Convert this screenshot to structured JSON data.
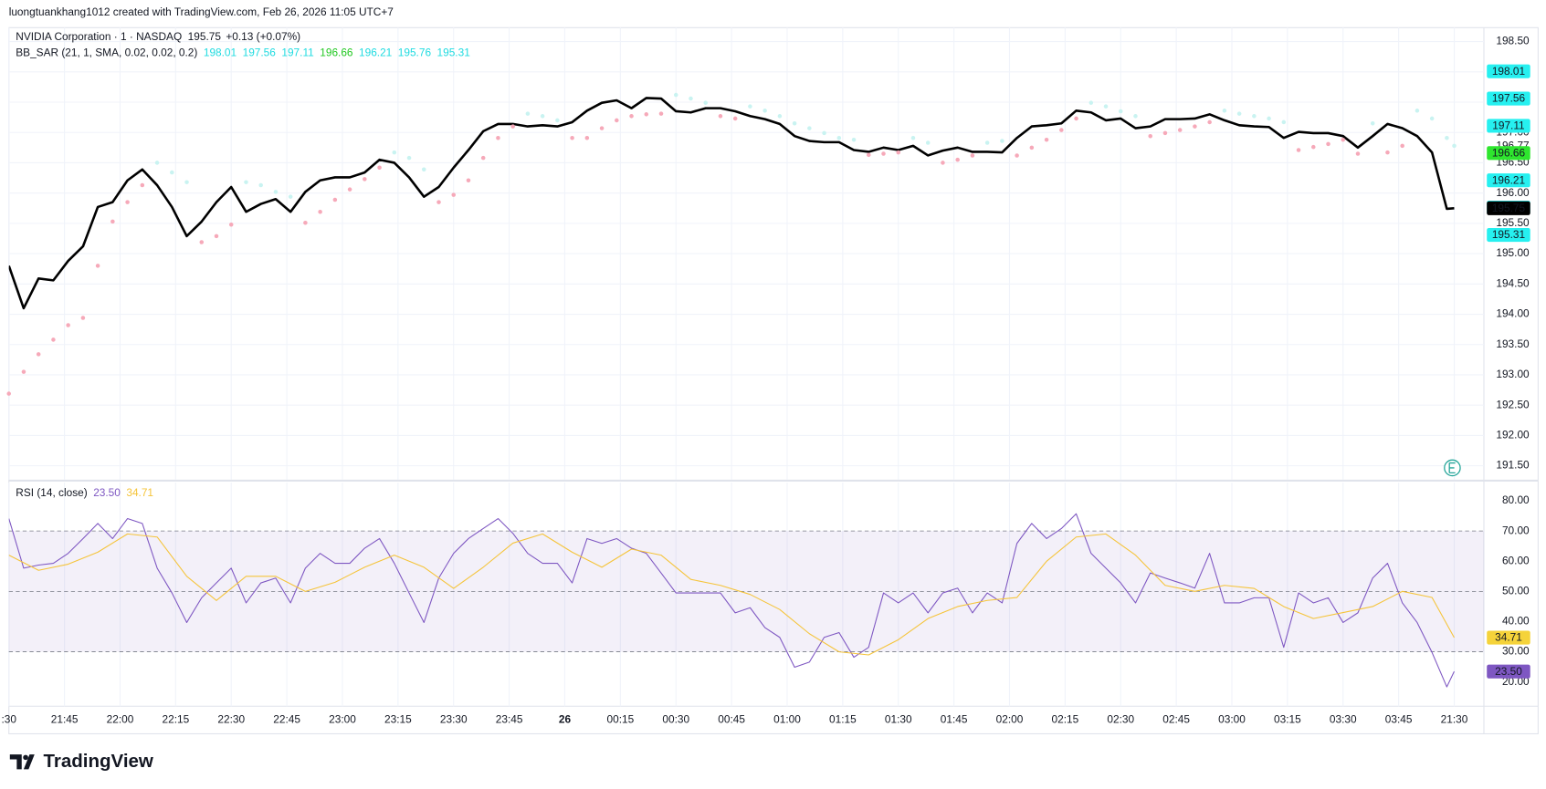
{
  "watermark": "luongtuankhang1012 created with TradingView.com, Feb 26, 2026 11:05 UTC+7",
  "brand": "TradingView",
  "chart_data": [
    {
      "type": "line",
      "xlim": [
        0,
        398
      ],
      "ylim": [
        191.27,
        198.73
      ],
      "yticks": [
        {
          "value": 198.5,
          "label": "198.50"
        },
        {
          "value": 198,
          "label": "198.00"
        },
        {
          "value": 197.5,
          "label": "197.50"
        },
        {
          "value": 197,
          "label": "197.00"
        },
        {
          "value": 196.5,
          "label": "196.50"
        },
        {
          "value": 196,
          "label": "196.00"
        },
        {
          "value": 195.5,
          "label": "195.50"
        },
        {
          "value": 195,
          "label": "195.00"
        },
        {
          "value": 194.5,
          "label": "194.50"
        },
        {
          "value": 194,
          "label": "194.00"
        },
        {
          "value": 193.5,
          "label": "193.50"
        },
        {
          "value": 193,
          "label": "193.00"
        },
        {
          "value": 192.5,
          "label": "192.50"
        },
        {
          "value": 192,
          "label": "192.00"
        },
        {
          "value": 191.5,
          "label": "191.50"
        }
      ],
      "grid": true,
      "change": "+0.13 (+0.07%)",
      "x": [
        0,
        4,
        8,
        12,
        16,
        20,
        24,
        28,
        32,
        36,
        40,
        44,
        48,
        52,
        56,
        60,
        64,
        68,
        72,
        76,
        80,
        84,
        88,
        92,
        96,
        100,
        104,
        108,
        112,
        116,
        120,
        124,
        128,
        132,
        136,
        140,
        144,
        148,
        152,
        156,
        160,
        164,
        168,
        172,
        176,
        180,
        184,
        188,
        192,
        196,
        200,
        204,
        208,
        212,
        216,
        220,
        224,
        228,
        232,
        236,
        240,
        244,
        248,
        252,
        256,
        260,
        264,
        268,
        272,
        276,
        280,
        284,
        288,
        292,
        296,
        300,
        304,
        308,
        312,
        316,
        320,
        324,
        328,
        332,
        336,
        340,
        344,
        348,
        352,
        356,
        360,
        364,
        368,
        372,
        376,
        380,
        384,
        388,
        390
      ],
      "series": [
        {
          "name": "NVIDIA Corporation · 1 · NASDAQ",
          "color": "#000000",
          "values": [
            194.8,
            194.1,
            194.59,
            194.56,
            194.88,
            195.12,
            195.77,
            195.85,
            196.21,
            196.39,
            196.13,
            195.77,
            195.29,
            195.53,
            195.85,
            196.1,
            195.69,
            195.82,
            195.9,
            195.69,
            196.02,
            196.21,
            196.26,
            196.26,
            196.34,
            196.55,
            196.5,
            196.26,
            195.94,
            196.1,
            196.42,
            196.71,
            197.02,
            197.14,
            197.14,
            197.1,
            197.12,
            197.1,
            197.17,
            197.36,
            197.49,
            197.53,
            197.4,
            197.57,
            197.56,
            197.35,
            197.33,
            197.4,
            197.4,
            197.35,
            197.27,
            197.22,
            197.14,
            196.94,
            196.86,
            196.84,
            196.84,
            196.71,
            196.68,
            196.75,
            196.71,
            196.78,
            196.62,
            196.7,
            196.75,
            196.68,
            196.68,
            196.67,
            196.91,
            197.1,
            197.12,
            197.15,
            197.36,
            197.33,
            197.2,
            197.23,
            197.07,
            197.1,
            197.22,
            197.22,
            197.23,
            197.3,
            197.2,
            197.12,
            197.1,
            197.09,
            196.91,
            197.01,
            196.99,
            196.99,
            196.94,
            196.75,
            196.94,
            197.14,
            197.07,
            196.94,
            196.67,
            195.74,
            195.75
          ],
          "last_label": {
            "value": 195.75,
            "label": "195.75",
            "color": "#000000",
            "text_color": "#ffffff"
          }
        }
      ],
      "sar": {
        "name": "BB_SAR (21, 1, SMA, 0.02, 0.02, 0.2)",
        "up_color": "#f6a9b9",
        "down_color": "#c9f3f1",
        "values": [
          192.69,
          193.05,
          193.34,
          193.58,
          193.82,
          193.94,
          194.8,
          195.53,
          195.85,
          196.13,
          196.5,
          196.34,
          196.18,
          195.19,
          195.29,
          195.48,
          196.18,
          196.13,
          196.02,
          195.94,
          195.51,
          195.69,
          195.89,
          196.06,
          196.23,
          196.42,
          196.67,
          196.58,
          196.39,
          195.85,
          195.97,
          196.21,
          196.58,
          196.91,
          197.1,
          197.31,
          197.27,
          197.2,
          196.91,
          196.91,
          197.07,
          197.2,
          197.27,
          197.3,
          197.31,
          197.62,
          197.56,
          197.49,
          197.27,
          197.23,
          197.43,
          197.36,
          197.27,
          197.15,
          197.07,
          196.99,
          196.91,
          196.88,
          196.63,
          196.65,
          196.67,
          196.91,
          196.83,
          196.5,
          196.55,
          196.62,
          196.83,
          196.86,
          196.62,
          196.75,
          196.88,
          197.04,
          197.23,
          197.49,
          197.43,
          197.35,
          197.27,
          196.94,
          196.99,
          197.04,
          197.1,
          197.17,
          197.36,
          197.31,
          197.27,
          197.23,
          197.17,
          196.71,
          196.76,
          196.81,
          196.88,
          196.65,
          197.15,
          196.67,
          196.78,
          197.36,
          197.23,
          196.91,
          196.78
        ],
        "bands": [
          {
            "value": 198.01,
            "label": "198.01",
            "color": "#26f0f0",
            "text_color": "#131722"
          },
          {
            "value": 197.56,
            "label": "197.56",
            "color": "#26f0f0",
            "text_color": "#131722"
          },
          {
            "value": 197.11,
            "label": "197.11",
            "color": "#26f0f0",
            "text_color": "#131722"
          },
          {
            "value": 196.66,
            "label": "196.66",
            "color": "#2ee62e",
            "text_color": "#131722"
          },
          {
            "value": 196.21,
            "label": "196.21",
            "color": "#26f0f0",
            "text_color": "#131722"
          },
          {
            "value": 195.76,
            "label": "195.76",
            "color": "#26f0f0",
            "text_color": "#131722"
          },
          {
            "value": 195.31,
            "label": "195.31",
            "color": "#26f0f0",
            "text_color": "#131722"
          }
        ]
      },
      "axis_label": {
        "value": 196.77,
        "label": "196.77"
      }
    },
    {
      "type": "line",
      "title": "RSI (14, close)",
      "xlim": [
        0,
        398
      ],
      "ylim": [
        12,
        86
      ],
      "yticks": [
        {
          "value": 80,
          "label": "80.00"
        },
        {
          "value": 70,
          "label": "70.00"
        },
        {
          "value": 60,
          "label": "60.00"
        },
        {
          "value": 50,
          "label": "50.00"
        },
        {
          "value": 40,
          "label": "40.00"
        },
        {
          "value": 30,
          "label": "30.00"
        },
        {
          "value": 20,
          "label": "20.00"
        }
      ],
      "levels": [
        70,
        50,
        30
      ],
      "band": [
        30,
        70
      ],
      "band_color": "#7e57c2",
      "xticks": [
        {
          "value": 0,
          "label": ":30"
        },
        {
          "value": 15,
          "label": "21:45"
        },
        {
          "value": 30,
          "label": "22:00"
        },
        {
          "value": 45,
          "label": "22:15"
        },
        {
          "value": 60,
          "label": "22:30"
        },
        {
          "value": 75,
          "label": "22:45"
        },
        {
          "value": 90,
          "label": "23:00"
        },
        {
          "value": 105,
          "label": "23:15"
        },
        {
          "value": 120,
          "label": "23:30"
        },
        {
          "value": 135,
          "label": "23:45"
        },
        {
          "value": 150,
          "label": "26",
          "bold": true
        },
        {
          "value": 165,
          "label": "00:15"
        },
        {
          "value": 180,
          "label": "00:30"
        },
        {
          "value": 195,
          "label": "00:45"
        },
        {
          "value": 210,
          "label": "01:00"
        },
        {
          "value": 225,
          "label": "01:15"
        },
        {
          "value": 240,
          "label": "01:30"
        },
        {
          "value": 255,
          "label": "01:45"
        },
        {
          "value": 270,
          "label": "02:00"
        },
        {
          "value": 285,
          "label": "02:15"
        },
        {
          "value": 300,
          "label": "02:30"
        },
        {
          "value": 315,
          "label": "02:45"
        },
        {
          "value": 330,
          "label": "03:00"
        },
        {
          "value": 345,
          "label": "03:15"
        },
        {
          "value": 360,
          "label": "03:30"
        },
        {
          "value": 375,
          "label": "03:45"
        },
        {
          "value": 390,
          "label": "21:30"
        }
      ],
      "x": [
        0,
        4,
        8,
        12,
        16,
        20,
        24,
        28,
        32,
        36,
        40,
        44,
        48,
        52,
        56,
        60,
        64,
        68,
        72,
        76,
        80,
        84,
        88,
        92,
        96,
        100,
        104,
        108,
        112,
        116,
        120,
        124,
        128,
        132,
        136,
        140,
        144,
        148,
        152,
        156,
        160,
        164,
        168,
        172,
        176,
        180,
        184,
        188,
        192,
        196,
        200,
        204,
        208,
        212,
        216,
        220,
        224,
        228,
        232,
        236,
        240,
        244,
        248,
        252,
        256,
        260,
        264,
        268,
        272,
        276,
        280,
        284,
        288,
        292,
        296,
        300,
        304,
        308,
        312,
        316,
        320,
        324,
        328,
        332,
        336,
        340,
        344,
        348,
        352,
        356,
        360,
        364,
        368,
        372,
        376,
        380,
        384,
        388,
        390
      ],
      "series": [
        {
          "color": "#7e57c2",
          "values": [
            74.1,
            57.7,
            58.7,
            59.3,
            62.6,
            67.5,
            72.5,
            67.5,
            74.1,
            72.5,
            57.7,
            49.5,
            39.7,
            47.9,
            52.8,
            57.7,
            46.2,
            52.8,
            54.4,
            46.2,
            57.7,
            62.6,
            59.3,
            59.3,
            64.3,
            67.5,
            59.3,
            49.5,
            39.7,
            54.4,
            62.6,
            67.5,
            70.8,
            74.1,
            69.2,
            62.6,
            59.3,
            59.3,
            52.8,
            67.5,
            65.9,
            67.5,
            64.3,
            62.6,
            56.1,
            49.5,
            49.5,
            49.5,
            49.5,
            42.9,
            44.6,
            38.0,
            34.8,
            24.9,
            26.6,
            34.8,
            36.4,
            28.2,
            31.5,
            49.5,
            46.2,
            49.5,
            42.9,
            49.5,
            51.1,
            42.9,
            49.5,
            46.2,
            65.9,
            72.5,
            67.5,
            70.8,
            75.7,
            62.6,
            57.7,
            52.8,
            46.2,
            56.1,
            54.4,
            52.8,
            51.1,
            62.6,
            46.2,
            46.2,
            47.9,
            47.9,
            31.5,
            49.5,
            46.2,
            47.9,
            39.7,
            42.9,
            54.4,
            59.3,
            46.2,
            39.7,
            29.8,
            18.4,
            23.5
          ],
          "last_label": {
            "value": 23.5,
            "label": "23.50",
            "color": "#7e57c2",
            "text_color": "#ffffff"
          }
        },
        {
          "color": "#f5c43a",
          "x": [
            0,
            8,
            16,
            24,
            32,
            40,
            48,
            56,
            64,
            72,
            80,
            88,
            96,
            104,
            112,
            120,
            128,
            136,
            144,
            152,
            160,
            168,
            176,
            184,
            192,
            200,
            208,
            216,
            224,
            232,
            240,
            248,
            256,
            264,
            272,
            280,
            288,
            296,
            304,
            312,
            320,
            328,
            336,
            344,
            352,
            360,
            368,
            376,
            384,
            390
          ],
          "values": [
            62,
            57,
            59,
            63,
            69,
            68,
            55,
            47,
            55,
            55,
            50,
            53,
            58,
            62,
            58,
            51,
            58,
            66,
            69,
            63,
            58,
            64,
            62,
            54,
            52,
            49,
            44,
            36,
            30,
            29,
            34,
            41,
            45,
            47,
            48,
            60,
            68,
            69,
            62,
            52,
            50,
            52,
            51,
            45,
            41,
            43,
            45,
            50,
            48,
            34.71
          ],
          "last_label": {
            "value": 34.71,
            "label": "34.71",
            "color": "#f5d33a",
            "text_color": "#131722"
          }
        }
      ]
    }
  ]
}
